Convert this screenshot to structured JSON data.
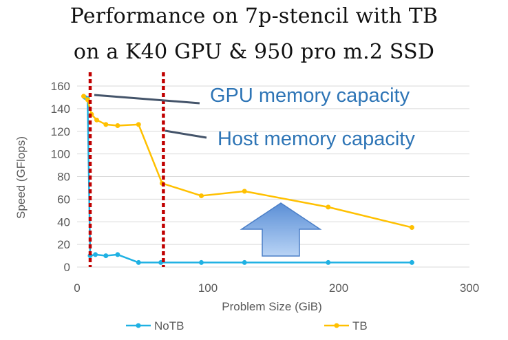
{
  "title_lines": [
    "Performance on 7p-stencil with TB",
    "on a K40 GPU & 950 pro m.2 SSD"
  ],
  "annotations": {
    "gpu": "GPU memory capacity",
    "host": "Host memory capacity"
  },
  "colors": {
    "notb": "#1fb1e3",
    "tb": "#ffc000",
    "grid": "#d9d9d9",
    "axis_text": "#595959",
    "annotation": "#2e75b6",
    "capacity_line": "#c00000",
    "arrow": "#8eb4e3"
  },
  "chart_data": {
    "type": "line",
    "title": "Performance on 7p-stencil with TB on a K40 GPU & 950 pro m.2 SSD",
    "xlabel": "Problem Size (GiB)",
    "ylabel": "Speed (GFlops)",
    "xlim": [
      0,
      300
    ],
    "ylim": [
      0,
      160
    ],
    "xticks": [
      0,
      100,
      200,
      300
    ],
    "yticks": [
      0,
      20,
      40,
      60,
      80,
      100,
      120,
      140,
      160
    ],
    "grid": "horizontal",
    "legend": "bottom",
    "vlines": [
      10,
      66
    ],
    "series": [
      {
        "name": "NoTB",
        "x": [
          6,
          8,
          10,
          14,
          22,
          31,
          47,
          64,
          95,
          128,
          192,
          256
        ],
        "y": [
          150,
          149,
          10,
          11,
          10,
          11,
          4,
          4,
          4,
          4,
          4,
          4
        ]
      },
      {
        "name": "TB",
        "x": [
          5,
          8,
          11,
          15,
          22,
          31,
          47,
          65,
          95,
          128,
          192,
          256
        ],
        "y": [
          151,
          148,
          135,
          130,
          126,
          125,
          126,
          74,
          63,
          67,
          53,
          35
        ]
      }
    ]
  }
}
